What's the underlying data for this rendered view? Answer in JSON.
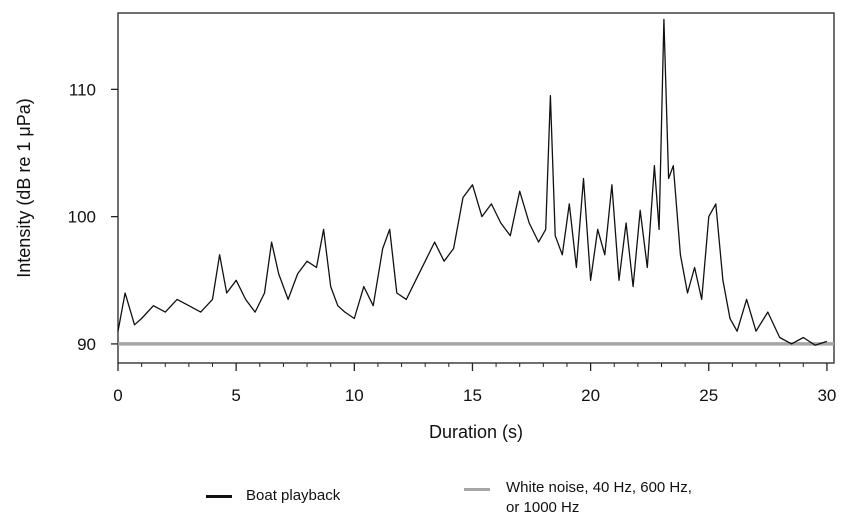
{
  "chart_data": {
    "type": "line",
    "title": "",
    "xlabel": "Duration (s)",
    "ylabel": "Intensity (dB re 1 μPa)",
    "xlim": [
      0,
      30.3
    ],
    "ylim": [
      88.5,
      116
    ],
    "xticks": [
      0,
      5,
      10,
      15,
      20,
      25,
      30
    ],
    "xtick_labels": [
      "0",
      "5",
      "10",
      "15",
      "20",
      "25",
      "30"
    ],
    "yticks": [
      90,
      100,
      110
    ],
    "ytick_labels": [
      "90",
      "100",
      "110"
    ],
    "grid": false,
    "legend_position": "bottom",
    "series": [
      {
        "name": "Boat playback",
        "color": "#111111",
        "x": [
          0,
          0.3,
          0.7,
          1.0,
          1.5,
          2.0,
          2.5,
          3.0,
          3.5,
          4.0,
          4.3,
          4.6,
          5.0,
          5.4,
          5.8,
          6.2,
          6.5,
          6.8,
          7.2,
          7.6,
          8.0,
          8.4,
          8.7,
          9.0,
          9.3,
          9.6,
          10.0,
          10.4,
          10.8,
          11.2,
          11.5,
          11.8,
          12.2,
          12.6,
          13.0,
          13.4,
          13.8,
          14.2,
          14.6,
          15.0,
          15.4,
          15.8,
          16.2,
          16.6,
          17.0,
          17.4,
          17.8,
          18.1,
          18.3,
          18.5,
          18.8,
          19.1,
          19.4,
          19.7,
          20.0,
          20.3,
          20.6,
          20.9,
          21.2,
          21.5,
          21.8,
          22.1,
          22.4,
          22.7,
          22.9,
          23.1,
          23.3,
          23.5,
          23.8,
          24.1,
          24.4,
          24.7,
          25.0,
          25.3,
          25.6,
          25.9,
          26.2,
          26.6,
          27.0,
          27.5,
          28.0,
          28.5,
          29.0,
          29.5,
          30.0
        ],
        "values": [
          91,
          94,
          91.5,
          92,
          93,
          92.5,
          93.5,
          93,
          92.5,
          93.5,
          97,
          94,
          95,
          93.5,
          92.5,
          94,
          98,
          95.5,
          93.5,
          95.5,
          96.5,
          96,
          99,
          94.5,
          93,
          92.5,
          92,
          94.5,
          93,
          97.5,
          99,
          94,
          93.5,
          95,
          96.5,
          98,
          96.5,
          97.5,
          101.5,
          102.5,
          100,
          101,
          99.5,
          98.5,
          102,
          99.5,
          98,
          99,
          109.5,
          98.5,
          97,
          101,
          96,
          103,
          95,
          99,
          97,
          102.5,
          95,
          99.5,
          94.5,
          100.5,
          96,
          104,
          99,
          115.5,
          103,
          104,
          97,
          94,
          96,
          93.5,
          100,
          101,
          95,
          92,
          91,
          93.5,
          91,
          92.5,
          90.5,
          90,
          90.5,
          89.9,
          90.2
        ]
      },
      {
        "name": "White noise, 40 Hz, 600 Hz, or 1000 Hz",
        "color": "#a6a6a6",
        "x": [
          0,
          30.3
        ],
        "values": [
          90,
          90
        ]
      }
    ]
  },
  "legend": {
    "item1": "Boat playback",
    "item2": "White noise, 40 Hz, 600 Hz, or 1000 Hz"
  }
}
